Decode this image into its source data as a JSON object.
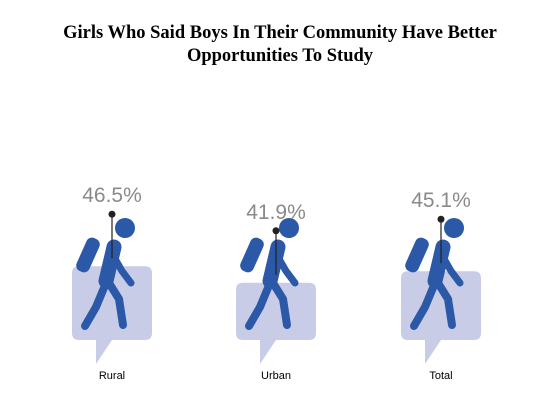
{
  "chart_data": {
    "type": "bar",
    "title_lines": [
      "Girls Who Said Boys In Their Community Have Better",
      "Opportunities To Study"
    ],
    "categories": [
      "Rural",
      "Urban",
      "Total"
    ],
    "values": [
      46.5,
      41.9,
      45.1
    ],
    "value_labels": [
      "46.5%",
      "41.9%",
      "45.1%"
    ],
    "unit": "%",
    "colors": {
      "box": "#c9cce6",
      "figure": "#2b59a8",
      "pin": "#222222",
      "value_text": "#8a8a8a"
    },
    "icon": "hiker-with-backpack-icon",
    "legend": "none",
    "grid": false
  }
}
